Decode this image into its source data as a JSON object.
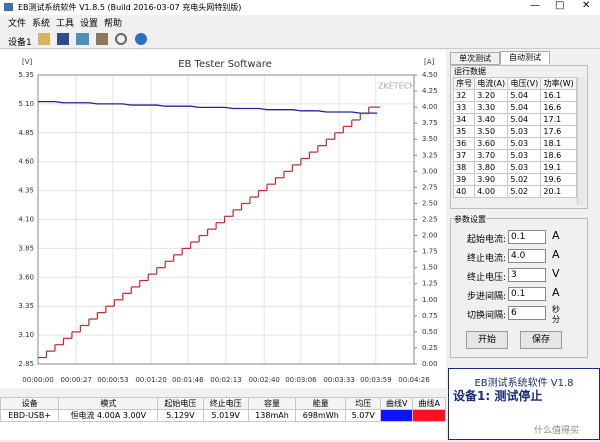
{
  "window": {
    "title": "EB测试系统软件 V1.8.5 (Build 2016-03-07 充电头网特别版)"
  },
  "menu": [
    "文件",
    "系统",
    "工具",
    "设置",
    "帮助"
  ],
  "toolbar": {
    "device": "设备1"
  },
  "chart_data": {
    "type": "line",
    "title": "EB Tester Software",
    "watermark": "ZKETECH",
    "y_unit": "[V]",
    "y2_unit": "[A]",
    "grid": true,
    "x": [
      0,
      6,
      12,
      18,
      24,
      30,
      36,
      42,
      48,
      54,
      60,
      66,
      72,
      78,
      84,
      90,
      96,
      102,
      108,
      114,
      120,
      126,
      132,
      138,
      144,
      150,
      156,
      162,
      168,
      174,
      180,
      186,
      192,
      198,
      204,
      210,
      216,
      222,
      228,
      234,
      240
    ],
    "xlim": [
      0,
      266
    ],
    "xticks": [
      {
        "value": 0,
        "label": "00:00:00"
      },
      {
        "value": 27,
        "label": "00:00:27"
      },
      {
        "value": 53,
        "label": "00:00:53"
      },
      {
        "value": 80,
        "label": "00:01:20"
      },
      {
        "value": 106,
        "label": "00:01:46"
      },
      {
        "value": 133,
        "label": "00:02:13"
      },
      {
        "value": 160,
        "label": "00:02:40"
      },
      {
        "value": 186,
        "label": "00:03:06"
      },
      {
        "value": 213,
        "label": "00:03:33"
      },
      {
        "value": 239,
        "label": "00:03:59"
      },
      {
        "value": 266,
        "label": "00:04:26"
      }
    ],
    "ylim": [
      2.85,
      5.35
    ],
    "yticks": [
      2.85,
      {
        "value": 3.1,
        "label": "3.10"
      },
      3.35,
      {
        "value": 3.6,
        "label": "3.60"
      },
      3.85,
      {
        "value": 4.1,
        "label": "4.10"
      },
      4.35,
      {
        "value": 4.6,
        "label": "4.60"
      },
      4.85,
      {
        "value": 5.1,
        "label": "5.10"
      },
      5.35
    ],
    "y2lim": [
      0,
      4.5
    ],
    "y2ticks": [
      {
        "value": 0,
        "label": "0.00"
      },
      0.25,
      {
        "value": 0.5,
        "label": "0.50"
      },
      0.75,
      {
        "value": 1,
        "label": "1.00"
      },
      1.25,
      {
        "value": 1.5,
        "label": "1.50"
      },
      1.75,
      {
        "value": 2,
        "label": "2.00"
      },
      2.25,
      {
        "value": 2.5,
        "label": "2.50"
      },
      2.75,
      {
        "value": 3,
        "label": "3.00"
      },
      3.25,
      {
        "value": 3.5,
        "label": "3.50"
      },
      3.75,
      {
        "value": 4,
        "label": "4.00"
      },
      4.25,
      {
        "value": 4.5,
        "label": "4.50"
      }
    ],
    "series": [
      {
        "color": "#23239a",
        "values": [
          5.12,
          5.12,
          5.12,
          5.11,
          5.11,
          5.11,
          5.11,
          5.1,
          5.1,
          5.1,
          5.1,
          5.09,
          5.09,
          5.09,
          5.09,
          5.08,
          5.08,
          5.08,
          5.08,
          5.07,
          5.07,
          5.07,
          5.07,
          5.06,
          5.06,
          5.06,
          5.06,
          5.05,
          5.05,
          5.05,
          5.05,
          5.04,
          5.04,
          5.04,
          5.03,
          5.03,
          5.03,
          5.03,
          5.02,
          5.02,
          5.02
        ]
      },
      {
        "color": "#c0282a",
        "axis": "y2",
        "step": true,
        "values": [
          0.1,
          0.2,
          0.3,
          0.4,
          0.5,
          0.6,
          0.7,
          0.8,
          0.9,
          1.0,
          1.1,
          1.2,
          1.3,
          1.4,
          1.5,
          1.6,
          1.7,
          1.8,
          1.9,
          2.0,
          2.1,
          2.2,
          2.3,
          2.4,
          2.5,
          2.6,
          2.7,
          2.8,
          2.9,
          3.0,
          3.1,
          3.2,
          3.3,
          3.4,
          3.5,
          3.6,
          3.7,
          3.8,
          3.9,
          4.0,
          4.0
        ]
      }
    ]
  },
  "tabs": [
    "单次测试",
    "自动测试"
  ],
  "run_data": {
    "title": "运行数据",
    "columns": [
      "序号",
      "电流(A)",
      "电压(V)",
      "功率(W)"
    ],
    "rows": [
      [
        "32",
        "3.20",
        "5.04",
        "16.1"
      ],
      [
        "33",
        "3.30",
        "5.04",
        "16.6"
      ],
      [
        "34",
        "3.40",
        "5.04",
        "17.1"
      ],
      [
        "35",
        "3.50",
        "5.03",
        "17.6"
      ],
      [
        "36",
        "3.60",
        "5.03",
        "18.1"
      ],
      [
        "37",
        "3.70",
        "5.03",
        "18.6"
      ],
      [
        "38",
        "3.80",
        "5.03",
        "19.1"
      ],
      [
        "39",
        "3.90",
        "5.02",
        "19.6"
      ],
      [
        "40",
        "4.00",
        "5.02",
        "20.1"
      ]
    ]
  },
  "params": {
    "title": "参数设置",
    "fields": [
      {
        "label": "起始电流:",
        "value": "0.1",
        "unit": "A"
      },
      {
        "label": "终止电流:",
        "value": "4.0",
        "unit": "A"
      },
      {
        "label": "终止电压:",
        "value": "3",
        "unit": "V"
      },
      {
        "label": "步进间隔:",
        "value": "0.1",
        "unit": "A"
      },
      {
        "label": "切换间隔:",
        "value": "6"
      }
    ],
    "radio": [
      "秒",
      "分"
    ],
    "buttons": [
      "开始",
      "保存"
    ]
  },
  "status": [
    "EB测试系统软件 V1.8",
    "设备1: 测试停止"
  ],
  "summary": {
    "columns": [
      "设备",
      "模式",
      "起始电压",
      "终止电压",
      "容量",
      "能量",
      "均压",
      "曲线V",
      "曲线A"
    ],
    "rows": [
      [
        "EBD-USB+",
        "恒电流 4.00A 3.00V",
        "5.129V",
        "5.019V",
        "138mAh",
        "698mWh",
        "5.07V"
      ]
    ],
    "swatches": [
      "#0a14ff",
      "#ff1020"
    ]
  },
  "watermark": "什么值得买"
}
